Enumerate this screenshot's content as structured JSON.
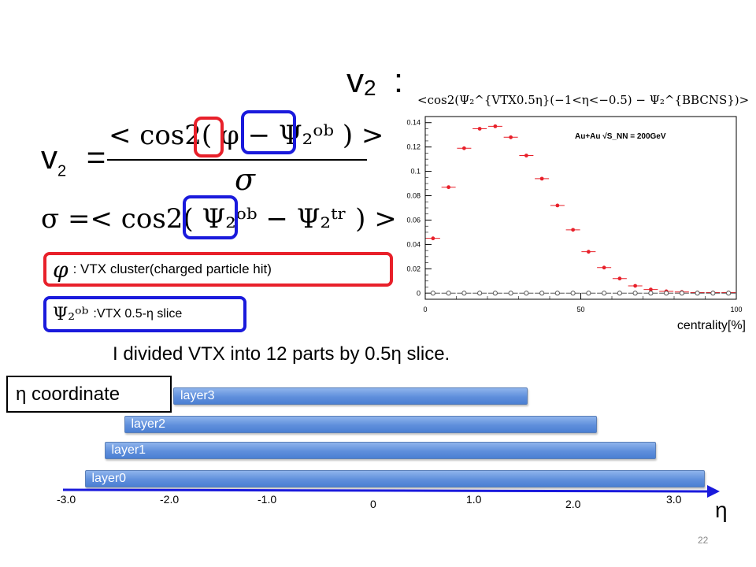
{
  "slide": {
    "title": "v",
    "title_sub": "2",
    "title_colon": ":",
    "page_number": "22"
  },
  "equations": {
    "v2_lhs": "v",
    "v2_lhs_sub": "2",
    "v2_numerator": "< cos2( φ − Ψ₂ᵒᵇ ) >",
    "v2_denominator": "σ",
    "sigma_eq": "σ =< cos2( Ψ₂ᵒᵇ − Ψ₂ᵗʳ ) >"
  },
  "legend": {
    "phi_symbol": "φ",
    "phi_desc": ": VTX cluster(charged particle hit)",
    "psi_symbol": "Ψ₂ᵒᵇ",
    "psi_desc": ":VTX 0.5-η slice",
    "phi_color": "#e8202a",
    "psi_color": "#1a1adc"
  },
  "note": "I divided VTX into 12 parts by 0.5η slice.",
  "eta_diagram": {
    "coord_label": "η coordinate",
    "axis_label": "η",
    "layers": [
      {
        "label": "layer3",
        "eta_min": -2.0,
        "eta_max": 1.6
      },
      {
        "label": "layer2",
        "eta_min": -2.5,
        "eta_max": 2.3
      },
      {
        "label": "layer1",
        "eta_min": -2.7,
        "eta_max": 2.9
      },
      {
        "label": "layer0",
        "eta_min": -2.9,
        "eta_max": 3.4
      }
    ],
    "ticks": [
      "-3.0",
      "-2.0",
      "-1.0",
      "0",
      "1.0",
      "2.0",
      "3.0"
    ]
  },
  "chart_data": {
    "type": "scatter",
    "title": "<cos2(Ψ₂^{VTX0.5η}(−1<η<−0.5) − Ψ₂^{BBCNS})>",
    "annotation": "Au+Au √S_NN = 200GeV",
    "xlabel": "centrality[%]",
    "ylabel": "",
    "xlim": [
      0,
      100
    ],
    "ylim": [
      -0.005,
      0.145
    ],
    "x_ticks": [
      "0",
      "50",
      "100"
    ],
    "y_ticks": [
      "0",
      "0.02",
      "0.04",
      "0.06",
      "0.08",
      "0.1",
      "0.12",
      "0.14"
    ],
    "series": [
      {
        "name": "",
        "color": "#e8202a",
        "marker": "filled",
        "x": [
          2.5,
          7.5,
          12.5,
          17.5,
          22.5,
          27.5,
          32.5,
          37.5,
          42.5,
          47.5,
          52.5,
          57.5,
          62.5,
          67.5,
          72.5,
          77.5,
          82.5,
          87.5,
          92.5,
          97.5
        ],
        "y": [
          0.045,
          0.087,
          0.119,
          0.135,
          0.137,
          0.128,
          0.113,
          0.094,
          0.072,
          0.052,
          0.034,
          0.021,
          0.012,
          0.006,
          0.003,
          0.0015,
          0.001,
          0.0005,
          0.0005,
          0.0005
        ]
      },
      {
        "name": "",
        "color": "#555555",
        "marker": "open",
        "x": [
          2.5,
          7.5,
          12.5,
          17.5,
          22.5,
          27.5,
          32.5,
          37.5,
          42.5,
          47.5,
          52.5,
          57.5,
          62.5,
          67.5,
          72.5,
          77.5,
          82.5,
          87.5,
          92.5,
          97.5
        ],
        "y": [
          0,
          0,
          0,
          0,
          0,
          0,
          0,
          0,
          0,
          0,
          0,
          0,
          0,
          0,
          0,
          0,
          0,
          0,
          0,
          0
        ]
      }
    ]
  }
}
